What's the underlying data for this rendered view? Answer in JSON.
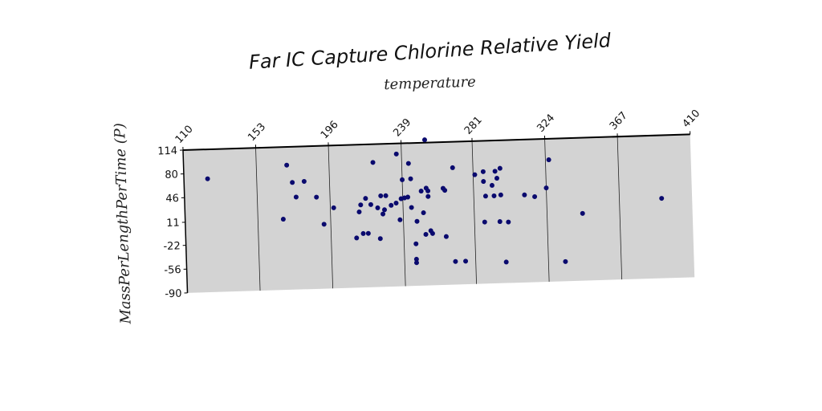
{
  "chart_data": {
    "type": "scatter",
    "title": "Far IC Capture Chlorine Relative Yield",
    "xlabel": "temperature",
    "ylabel": "MassPerLengthPerTime (P)",
    "x_ticks": [
      "110",
      "153",
      "196",
      "239",
      "281",
      "324",
      "367",
      "410"
    ],
    "y_ticks": [
      "114",
      "80",
      "46",
      "11",
      "-22",
      "-56",
      "-90"
    ],
    "xlim": [
      110,
      410
    ],
    "ylim": [
      -90,
      114
    ],
    "x_axis_position": "top",
    "grid": "vertical",
    "point_color": "#0a0a6e",
    "plot_background": "#d3d3d3",
    "points": [
      {
        "x": 124,
        "y": 72
      },
      {
        "x": 168,
        "y": 11
      },
      {
        "x": 171,
        "y": 88
      },
      {
        "x": 174,
        "y": 63
      },
      {
        "x": 176,
        "y": 42
      },
      {
        "x": 181,
        "y": 64
      },
      {
        "x": 188,
        "y": 41
      },
      {
        "x": 192,
        "y": 2
      },
      {
        "x": 198,
        "y": 25
      },
      {
        "x": 211,
        "y": -19
      },
      {
        "x": 213,
        "y": 18
      },
      {
        "x": 214,
        "y": 28
      },
      {
        "x": 215,
        "y": -13
      },
      {
        "x": 217,
        "y": 37
      },
      {
        "x": 218,
        "y": -13
      },
      {
        "x": 220,
        "y": 28
      },
      {
        "x": 222,
        "y": 88
      },
      {
        "x": 224,
        "y": 23
      },
      {
        "x": 225,
        "y": -21
      },
      {
        "x": 226,
        "y": 40
      },
      {
        "x": 227,
        "y": 14
      },
      {
        "x": 228,
        "y": 20
      },
      {
        "x": 229,
        "y": 40
      },
      {
        "x": 232,
        "y": 26
      },
      {
        "x": 235,
        "y": 29
      },
      {
        "x": 236,
        "y": 99
      },
      {
        "x": 237,
        "y": 5
      },
      {
        "x": 238,
        "y": 35
      },
      {
        "x": 239,
        "y": 62
      },
      {
        "x": 240,
        "y": 36
      },
      {
        "x": 242,
        "y": 37
      },
      {
        "x": 243,
        "y": 85
      },
      {
        "x": 244,
        "y": 63
      },
      {
        "x": 244,
        "y": 22
      },
      {
        "x": 246,
        "y": -52
      },
      {
        "x": 246,
        "y": -57
      },
      {
        "x": 246,
        "y": -30
      },
      {
        "x": 247,
        "y": 2
      },
      {
        "x": 250,
        "y": 45
      },
      {
        "x": 251,
        "y": 14
      },
      {
        "x": 252,
        "y": -17
      },
      {
        "x": 253,
        "y": 118
      },
      {
        "x": 253,
        "y": 49
      },
      {
        "x": 254,
        "y": 45
      },
      {
        "x": 254,
        "y": 37
      },
      {
        "x": 255,
        "y": -12
      },
      {
        "x": 256,
        "y": -16
      },
      {
        "x": 263,
        "y": 48
      },
      {
        "x": 264,
        "y": 45
      },
      {
        "x": 264,
        "y": -21
      },
      {
        "x": 269,
        "y": 77
      },
      {
        "x": 269,
        "y": -57
      },
      {
        "x": 275,
        "y": -57
      },
      {
        "x": 282,
        "y": 66
      },
      {
        "x": 287,
        "y": -2
      },
      {
        "x": 287,
        "y": 70
      },
      {
        "x": 287,
        "y": 56
      },
      {
        "x": 288,
        "y": 35
      },
      {
        "x": 292,
        "y": 50
      },
      {
        "x": 293,
        "y": 35
      },
      {
        "x": 294,
        "y": 70
      },
      {
        "x": 295,
        "y": 60
      },
      {
        "x": 296,
        "y": -2
      },
      {
        "x": 297,
        "y": 36
      },
      {
        "x": 297,
        "y": 74
      },
      {
        "x": 299,
        "y": -60
      },
      {
        "x": 301,
        "y": -3
      },
      {
        "x": 311,
        "y": 35
      },
      {
        "x": 317,
        "y": 32
      },
      {
        "x": 324,
        "y": 44
      },
      {
        "x": 326,
        "y": 84
      },
      {
        "x": 334,
        "y": -62
      },
      {
        "x": 345,
        "y": 6
      },
      {
        "x": 392,
        "y": 24
      }
    ]
  }
}
